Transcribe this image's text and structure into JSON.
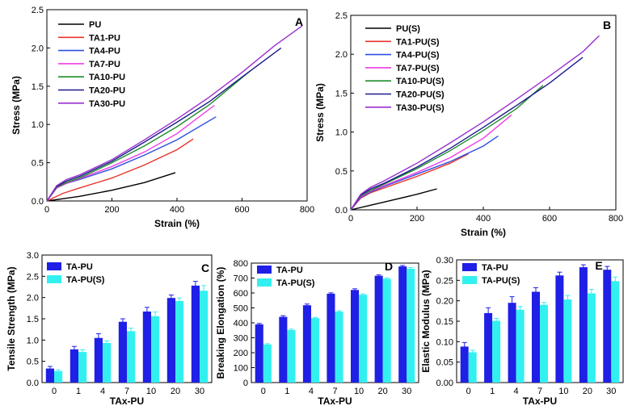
{
  "chart_data": [
    {
      "id": "A",
      "type": "line",
      "panel_label": "A",
      "xlabel": "Strain (%)",
      "ylabel": "Stress (MPa)",
      "xlim": [
        0,
        800
      ],
      "ylim": [
        0,
        2.5
      ],
      "xticks": [
        "0",
        "200",
        "400",
        "600",
        "800"
      ],
      "yticks": [
        "0.0",
        "0.5",
        "1.0",
        "1.5",
        "2.0",
        "2.5"
      ],
      "xtick_values": [
        0,
        200,
        400,
        600,
        800
      ],
      "ytick_values": [
        0,
        0.5,
        1.0,
        1.5,
        2.0,
        2.5
      ],
      "legend_position": "top-left",
      "series": [
        {
          "name": "PU",
          "color": "#000000",
          "x": [
            0,
            50,
            100,
            200,
            300,
            395
          ],
          "y": [
            0,
            0.03,
            0.06,
            0.14,
            0.24,
            0.37
          ]
        },
        {
          "name": "TA1-PU",
          "color": "#e8332c",
          "x": [
            0,
            50,
            100,
            200,
            300,
            400,
            450
          ],
          "y": [
            0,
            0.1,
            0.17,
            0.3,
            0.47,
            0.67,
            0.81
          ]
        },
        {
          "name": "TA4-PU",
          "color": "#2e4fe0",
          "x": [
            0,
            30,
            60,
            100,
            200,
            300,
            400,
            520
          ],
          "y": [
            0,
            0.17,
            0.23,
            0.28,
            0.42,
            0.6,
            0.8,
            1.1
          ]
        },
        {
          "name": "TA7-PU",
          "color": "#ee3ee6",
          "x": [
            0,
            30,
            60,
            100,
            200,
            300,
            400,
            515
          ],
          "y": [
            0,
            0.17,
            0.23,
            0.29,
            0.45,
            0.64,
            0.88,
            1.25
          ]
        },
        {
          "name": "TA10-PU",
          "color": "#1e8c2a",
          "x": [
            0,
            30,
            60,
            100,
            200,
            300,
            400,
            500,
            625
          ],
          "y": [
            0,
            0.18,
            0.24,
            0.3,
            0.5,
            0.72,
            0.97,
            1.26,
            1.7
          ]
        },
        {
          "name": "TA20-PU",
          "color": "#1a1a8c",
          "x": [
            0,
            30,
            60,
            100,
            200,
            300,
            400,
            500,
            600,
            720
          ],
          "y": [
            0,
            0.19,
            0.26,
            0.32,
            0.52,
            0.77,
            1.03,
            1.3,
            1.62,
            2.0
          ]
        },
        {
          "name": "TA30-PU",
          "color": "#9b2fd0",
          "x": [
            0,
            30,
            60,
            100,
            200,
            300,
            400,
            500,
            600,
            700,
            785
          ],
          "y": [
            0,
            0.2,
            0.28,
            0.34,
            0.54,
            0.8,
            1.07,
            1.36,
            1.68,
            2.03,
            2.29
          ]
        }
      ]
    },
    {
      "id": "B",
      "type": "line",
      "panel_label": "B",
      "xlabel": "Strain (%)",
      "ylabel": "Stress (MPa)",
      "xlim": [
        0,
        800
      ],
      "ylim": [
        0,
        2.5
      ],
      "xticks": [
        "0",
        "200",
        "400",
        "600",
        "800"
      ],
      "yticks": [
        "0.0",
        "0.5",
        "1.0",
        "1.5",
        "2.0",
        "2.5"
      ],
      "xtick_values": [
        0,
        200,
        400,
        600,
        800
      ],
      "ytick_values": [
        0,
        0.5,
        1.0,
        1.5,
        2.0,
        2.5
      ],
      "legend_position": "top-left",
      "series": [
        {
          "name": "PU(S)",
          "color": "#000000",
          "x": [
            0,
            50,
            100,
            200,
            260
          ],
          "y": [
            0,
            0.05,
            0.1,
            0.2,
            0.27
          ]
        },
        {
          "name": "TA1-PU(S)",
          "color": "#e8332c",
          "x": [
            0,
            30,
            60,
            100,
            200,
            300,
            355
          ],
          "y": [
            0,
            0.15,
            0.22,
            0.28,
            0.43,
            0.6,
            0.72
          ]
        },
        {
          "name": "TA4-PU(S)",
          "color": "#2e4fe0",
          "x": [
            0,
            30,
            60,
            100,
            200,
            300,
            400,
            445
          ],
          "y": [
            0,
            0.16,
            0.23,
            0.3,
            0.46,
            0.62,
            0.82,
            0.95
          ]
        },
        {
          "name": "TA7-PU(S)",
          "color": "#ee3ee6",
          "x": [
            0,
            30,
            60,
            100,
            200,
            300,
            400,
            485
          ],
          "y": [
            0,
            0.17,
            0.24,
            0.31,
            0.48,
            0.67,
            0.92,
            1.22
          ]
        },
        {
          "name": "TA10-PU(S)",
          "color": "#1e8c2a",
          "x": [
            0,
            30,
            60,
            100,
            200,
            300,
            400,
            500,
            580
          ],
          "y": [
            0,
            0.18,
            0.25,
            0.33,
            0.53,
            0.76,
            1.02,
            1.3,
            1.6
          ]
        },
        {
          "name": "TA20-PU(S)",
          "color": "#1a1a8c",
          "x": [
            0,
            30,
            60,
            100,
            200,
            300,
            400,
            500,
            600,
            700
          ],
          "y": [
            0,
            0.19,
            0.27,
            0.34,
            0.55,
            0.79,
            1.06,
            1.34,
            1.63,
            1.96
          ]
        },
        {
          "name": "TA30-PU(S)",
          "color": "#9b2fd0",
          "x": [
            0,
            30,
            60,
            100,
            200,
            300,
            400,
            500,
            600,
            700,
            750
          ],
          "y": [
            0,
            0.2,
            0.29,
            0.37,
            0.6,
            0.86,
            1.13,
            1.42,
            1.72,
            2.03,
            2.24
          ]
        }
      ]
    },
    {
      "id": "C",
      "type": "bar",
      "panel_label": "C",
      "xlabel": "TAx-PU",
      "ylabel": "Tensile Strength (MPa)",
      "categories": [
        "0",
        "1",
        "4",
        "7",
        "10",
        "20",
        "30"
      ],
      "ylim": [
        0,
        3.0
      ],
      "yticks": [
        "0.0",
        "0.5",
        "1.0",
        "1.5",
        "2.0",
        "2.5",
        "3.0"
      ],
      "ytick_values": [
        0,
        0.5,
        1.0,
        1.5,
        2.0,
        2.5,
        3.0
      ],
      "legend_position": "top-left",
      "series": [
        {
          "name": "TA-PU",
          "color": "#1f1fe6",
          "values": [
            0.33,
            0.78,
            1.05,
            1.43,
            1.67,
            1.99,
            2.28
          ],
          "errors": [
            0.05,
            0.07,
            0.1,
            0.07,
            0.1,
            0.07,
            0.1
          ]
        },
        {
          "name": "TA-PU(S)",
          "color": "#33f0f0",
          "values": [
            0.27,
            0.72,
            0.93,
            1.21,
            1.56,
            1.92,
            2.16
          ],
          "errors": [
            0.03,
            0.05,
            0.05,
            0.07,
            0.1,
            0.07,
            0.12
          ]
        }
      ]
    },
    {
      "id": "D",
      "type": "bar",
      "panel_label": "D",
      "xlabel": "TAx-PU",
      "ylabel": "Breaking Elongation (%)",
      "categories": [
        "0",
        "1",
        "4",
        "7",
        "10",
        "20",
        "30"
      ],
      "ylim": [
        0,
        800
      ],
      "yticks": [
        "0",
        "100",
        "200",
        "300",
        "400",
        "500",
        "600",
        "700",
        "800"
      ],
      "ytick_values": [
        0,
        100,
        200,
        300,
        400,
        500,
        600,
        700,
        800
      ],
      "legend_position": "top-left",
      "series": [
        {
          "name": "TA-PU",
          "color": "#1f1fe6",
          "values": [
            390,
            440,
            518,
            595,
            620,
            715,
            778
          ],
          "errors": [
            6,
            8,
            8,
            6,
            8,
            6,
            6
          ]
        },
        {
          "name": "TA-PU(S)",
          "color": "#33f0f0",
          "values": [
            255,
            352,
            432,
            475,
            588,
            695,
            762
          ],
          "errors": [
            5,
            6,
            5,
            6,
            6,
            6,
            8
          ]
        }
      ]
    },
    {
      "id": "E",
      "type": "bar",
      "panel_label": "E",
      "xlabel": "TAx-PU",
      "ylabel": "Elastic Modulus (MPa)",
      "categories": [
        "0",
        "1",
        "4",
        "7",
        "10",
        "20",
        "30"
      ],
      "ylim": [
        0,
        0.3
      ],
      "yticks": [
        "0.00",
        "0.05",
        "0.10",
        "0.15",
        "0.20",
        "0.25",
        "0.30"
      ],
      "ytick_values": [
        0,
        0.05,
        0.1,
        0.15,
        0.2,
        0.25,
        0.3
      ],
      "legend_position": "top-left",
      "series": [
        {
          "name": "TA-PU",
          "color": "#1f1fe6",
          "values": [
            0.088,
            0.17,
            0.195,
            0.222,
            0.262,
            0.282,
            0.276
          ],
          "errors": [
            0.01,
            0.013,
            0.015,
            0.01,
            0.008,
            0.006,
            0.008
          ]
        },
        {
          "name": "TA-PU(S)",
          "color": "#33f0f0",
          "values": [
            0.074,
            0.151,
            0.178,
            0.19,
            0.203,
            0.218,
            0.248
          ],
          "errors": [
            0.005,
            0.006,
            0.008,
            0.006,
            0.01,
            0.01,
            0.01
          ]
        }
      ]
    }
  ]
}
